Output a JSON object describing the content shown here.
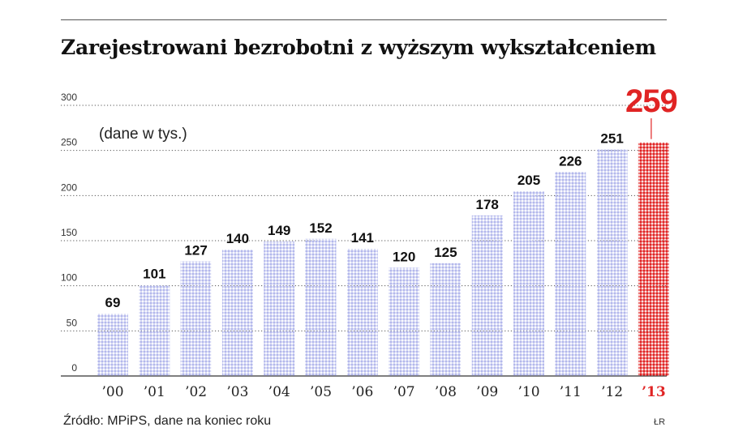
{
  "title": "Zarejestrowani bezrobotni z wyższym wykształceniem",
  "unit_note": "(dane w tys.)",
  "source": "Źródło: MPiPS, dane na koniec roku",
  "credit": "ŁR",
  "colors": {
    "bar": "#b3b8ec",
    "highlight_bar": "#e02424",
    "highlight_label": "#e02424",
    "label": "#111111",
    "axis_text": "#333333",
    "grid": "#555555"
  },
  "chart_data": {
    "type": "bar",
    "categories": [
      "’00",
      "’01",
      "’02",
      "’03",
      "’04",
      "’05",
      "’06",
      "’07",
      "’08",
      "’09",
      "’10",
      "’11",
      "’12",
      "’13"
    ],
    "values": [
      69,
      101,
      127,
      140,
      149,
      152,
      141,
      120,
      125,
      178,
      205,
      226,
      251,
      259
    ],
    "highlight_index": 13,
    "ylim": [
      0,
      300
    ],
    "yticks": [
      0,
      50,
      100,
      150,
      200,
      250,
      300
    ],
    "grid": "dotted",
    "title": "Zarejestrowani bezrobotni z wyższym wykształceniem"
  }
}
